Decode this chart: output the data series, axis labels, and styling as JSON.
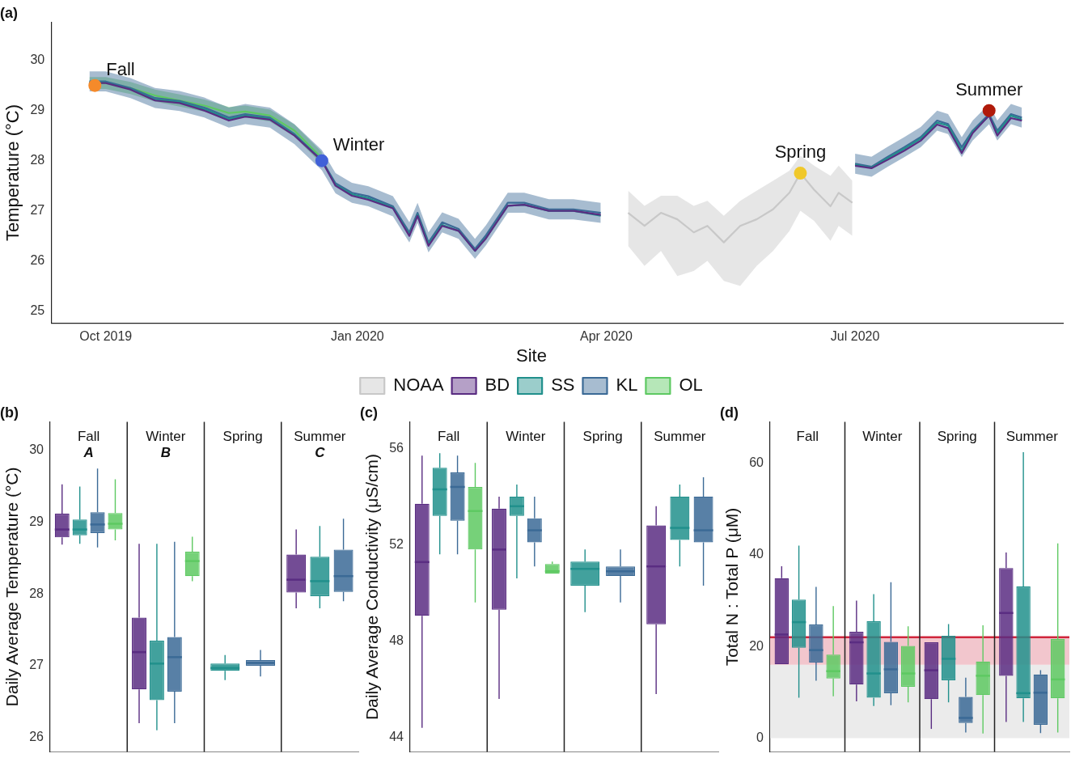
{
  "chart_data": [
    {
      "type": "line",
      "title": "(a)",
      "ylabel": "Temperature (°C)",
      "legend_title": "Site",
      "legend": "bottom",
      "grid": false,
      "xlim": [
        "2019-09-11",
        "2020-09-15"
      ],
      "ylim": [
        24.76,
        30.76
      ],
      "yticks": [
        25,
        26,
        27,
        28,
        29,
        30
      ],
      "xticks": [
        {
          "value": "2019-10-01",
          "label": "Oct 2019"
        },
        {
          "value": "2020-01-01",
          "label": "Jan 2020"
        },
        {
          "value": "2020-04-01",
          "label": "Apr 2020"
        },
        {
          "value": "2020-07-01",
          "label": "Jul 2020"
        }
      ],
      "series": [
        {
          "name": "NOAA",
          "color": "#c8c8c8",
          "x": [
            "2020-04-09",
            "2020-04-15",
            "2020-04-21",
            "2020-04-27",
            "2020-05-03",
            "2020-05-08",
            "2020-05-14",
            "2020-05-20",
            "2020-05-26",
            "2020-06-01",
            "2020-06-07",
            "2020-06-11",
            "2020-06-16",
            "2020-06-22",
            "2020-06-25",
            "2020-06-30"
          ],
          "values": [
            26.96,
            26.7,
            26.96,
            26.83,
            26.57,
            26.7,
            26.37,
            26.7,
            26.83,
            27.03,
            27.36,
            27.75,
            27.42,
            27.09,
            27.36,
            27.16
          ],
          "lower": [
            26.3,
            25.9,
            26.2,
            25.7,
            25.8,
            26.0,
            25.6,
            25.5,
            25.9,
            26.2,
            26.6,
            27.0,
            26.8,
            26.4,
            26.7,
            26.5
          ],
          "upper": [
            27.4,
            27.1,
            27.3,
            27.3,
            27.1,
            27.2,
            26.9,
            27.2,
            27.4,
            27.6,
            27.8,
            28.1,
            27.9,
            27.7,
            27.9,
            27.6
          ]
        },
        {
          "name": "BD",
          "color": "#5a2d82",
          "x": [
            "2019-09-25",
            "2019-10-01",
            "2019-10-10",
            "2019-10-19",
            "2019-10-28",
            "2019-11-06",
            "2019-11-15",
            "2019-11-21",
            "2019-11-30",
            "2019-12-09",
            "2019-12-19",
            "2019-12-24",
            "2019-12-30",
            "2020-01-05",
            "2020-01-14",
            "2020-01-20",
            "2020-01-23",
            "2020-01-27",
            "2020-02-01",
            "2020-02-07",
            "2020-02-13",
            "2020-02-17",
            "2020-02-25",
            "2020-03-02",
            "2020-03-11",
            "2020-03-20",
            "2020-03-30",
            "2020-05-15",
            "2020-07-01",
            "2020-07-07",
            "2020-07-13",
            "2020-07-19",
            "2020-07-25",
            "2020-07-31",
            "2020-08-04",
            "2020-08-09",
            "2020-08-13",
            "2020-08-19",
            "2020-08-22",
            "2020-08-27",
            "2020-08-31"
          ],
          "values": [
            29.55,
            29.55,
            29.42,
            29.2,
            29.15,
            29.0,
            28.8,
            28.88,
            28.82,
            28.5,
            28.0,
            27.5,
            27.3,
            27.22,
            27.05,
            26.5,
            26.9,
            26.3,
            26.7,
            26.6,
            26.2,
            26.45,
            27.1,
            27.12,
            27.0,
            27.0,
            26.92,
            null,
            27.9,
            27.85,
            28.02,
            28.2,
            28.4,
            28.72,
            28.65,
            28.15,
            28.55,
            28.9,
            28.5,
            28.85,
            28.8
          ]
        },
        {
          "name": "SS",
          "color": "#21908c",
          "x": [
            "2019-09-25",
            "2019-10-01",
            "2019-10-10",
            "2019-10-19",
            "2019-10-28",
            "2019-11-06",
            "2019-11-15",
            "2019-11-21",
            "2019-11-30",
            "2019-12-09",
            "2019-12-19",
            "2019-12-24",
            "2019-12-30",
            "2020-01-05",
            "2020-01-14",
            "2020-01-20",
            "2020-01-23",
            "2020-01-27",
            "2020-02-01",
            "2020-02-07",
            "2020-02-13",
            "2020-02-17",
            "2020-02-25",
            "2020-03-02",
            "2020-03-11",
            "2020-03-20",
            "2020-03-30",
            "2020-05-15",
            "2020-07-01",
            "2020-07-07",
            "2020-07-13",
            "2020-07-19",
            "2020-07-25",
            "2020-07-31",
            "2020-08-04",
            "2020-08-09",
            "2020-08-13",
            "2020-08-19",
            "2020-08-22",
            "2020-08-27",
            "2020-08-31"
          ],
          "values": [
            29.56,
            29.56,
            29.43,
            29.22,
            29.17,
            29.03,
            28.83,
            28.9,
            28.84,
            28.52,
            28.0,
            27.52,
            27.33,
            27.25,
            27.06,
            26.52,
            26.92,
            26.33,
            26.72,
            26.6,
            26.2,
            26.46,
            27.1,
            27.12,
            27.0,
            27.0,
            26.9,
            null,
            27.92,
            27.86,
            28.05,
            28.24,
            28.44,
            28.76,
            28.7,
            28.2,
            28.58,
            28.9,
            28.55,
            28.9,
            28.82
          ]
        },
        {
          "name": "KL",
          "color": "#3b6a96",
          "x": [
            "2019-09-25",
            "2019-10-01",
            "2019-10-10",
            "2019-10-19",
            "2019-10-28",
            "2019-11-06",
            "2019-11-15",
            "2019-11-21",
            "2019-11-30",
            "2019-12-09",
            "2019-12-19",
            "2019-12-24",
            "2019-12-30",
            "2020-01-05",
            "2020-01-14",
            "2020-01-20",
            "2020-01-23",
            "2020-01-27",
            "2020-02-01",
            "2020-02-07",
            "2020-02-13",
            "2020-02-17",
            "2020-02-25",
            "2020-03-02",
            "2020-03-11",
            "2020-03-20",
            "2020-03-30",
            "2020-05-15",
            "2020-07-01",
            "2020-07-07",
            "2020-07-13",
            "2020-07-19",
            "2020-07-25",
            "2020-07-31",
            "2020-08-04",
            "2020-08-09",
            "2020-08-13",
            "2020-08-19",
            "2020-08-22",
            "2020-08-27",
            "2020-08-31"
          ],
          "values": [
            29.58,
            29.58,
            29.45,
            29.25,
            29.19,
            29.06,
            28.86,
            28.93,
            28.86,
            28.53,
            28.01,
            27.55,
            27.36,
            27.29,
            27.09,
            26.57,
            26.96,
            26.37,
            26.77,
            26.64,
            26.24,
            26.51,
            27.16,
            27.16,
            27.03,
            27.03,
            26.96,
            null,
            27.94,
            27.88,
            28.08,
            28.27,
            28.47,
            28.8,
            28.73,
            28.27,
            28.6,
            28.93,
            28.6,
            28.93,
            28.86
          ],
          "lower": [
            29.38,
            29.38,
            29.25,
            29.05,
            28.99,
            28.86,
            28.66,
            28.73,
            28.66,
            28.33,
            27.81,
            27.35,
            27.16,
            27.09,
            26.89,
            26.37,
            26.76,
            26.17,
            26.57,
            26.44,
            26.04,
            26.31,
            26.96,
            26.96,
            26.83,
            26.83,
            26.76,
            null,
            27.74,
            27.68,
            27.88,
            28.07,
            28.27,
            28.6,
            28.53,
            28.07,
            28.4,
            28.73,
            28.4,
            28.73,
            28.66
          ],
          "upper": [
            29.78,
            29.78,
            29.65,
            29.45,
            29.39,
            29.26,
            29.06,
            29.13,
            29.06,
            28.73,
            28.21,
            27.75,
            27.56,
            27.49,
            27.29,
            26.77,
            27.16,
            26.57,
            26.97,
            26.84,
            26.44,
            26.71,
            27.36,
            27.36,
            27.23,
            27.23,
            27.16,
            null,
            28.14,
            28.08,
            28.28,
            28.47,
            28.67,
            29.0,
            28.93,
            28.47,
            28.8,
            29.13,
            28.8,
            29.13,
            29.06
          ]
        },
        {
          "name": "OL",
          "color": "#5ec962",
          "x": [
            "2019-09-25",
            "2019-10-01",
            "2019-10-10",
            "2019-10-19",
            "2019-10-28",
            "2019-11-06",
            "2019-11-15",
            "2019-11-21",
            "2019-11-30",
            "2019-12-09",
            "2019-12-19"
          ],
          "values": [
            29.55,
            29.55,
            29.45,
            29.3,
            29.2,
            29.1,
            28.95,
            28.98,
            28.9,
            28.6,
            28.05
          ],
          "lower": [
            29.43,
            29.43,
            29.33,
            29.18,
            29.08,
            28.98,
            28.83,
            28.86,
            28.78,
            28.48,
            27.93
          ],
          "upper": [
            29.67,
            29.67,
            29.57,
            29.42,
            29.32,
            29.22,
            29.07,
            29.1,
            29.02,
            28.72,
            28.17
          ]
        },
        {
          "type": "scatter",
          "x": [
            "2019-09-27",
            "2019-12-19",
            "2020-06-11",
            "2020-08-19"
          ],
          "values": [
            29.5,
            28.0,
            27.75,
            29.0
          ],
          "colors": [
            "#f58a2a",
            "#4060d8",
            "#f0c82a",
            "#b01a0a"
          ]
        }
      ],
      "annotations": [
        {
          "text": "Fall",
          "x": "2019-09-27",
          "y": 29.5
        },
        {
          "text": "Winter",
          "x": "2019-12-19",
          "y": 28.0
        },
        {
          "text": "Spring",
          "x": "2020-06-11",
          "y": 27.75
        },
        {
          "text": "Summer",
          "x": "2020-08-19",
          "y": 29.0
        }
      ]
    },
    {
      "type": "box",
      "title": "(b)",
      "ylabel": "Daily Average Temperature (°C)",
      "grid": false,
      "tick_labels": "y",
      "categories": [
        "Fall",
        "Winter",
        "Spring",
        "Summer"
      ],
      "ylim": [
        25.8,
        30.4
      ],
      "yticks": [
        26,
        27,
        28,
        29,
        30
      ],
      "series": [
        {
          "color": "#5a2d82",
          "boxes": [
            {
              "low": 28.69,
              "q1": 28.79,
              "median": 28.9,
              "q3": 29.12,
              "high": 29.53
            },
            {
              "low": 26.2,
              "q1": 26.67,
              "median": 27.19,
              "q3": 27.67,
              "high": 28.7
            },
            null,
            {
              "low": 27.8,
              "q1": 28.02,
              "median": 28.2,
              "q3": 28.55,
              "high": 28.9
            }
          ]
        },
        {
          "color": "#21908c",
          "boxes": [
            {
              "low": 28.7,
              "q1": 28.82,
              "median": 28.9,
              "q3": 29.04,
              "high": 29.5
            },
            {
              "low": 26.1,
              "q1": 26.52,
              "median": 27.03,
              "q3": 27.35,
              "high": 28.7
            },
            {
              "low": 26.8,
              "q1": 26.93,
              "median": 26.97,
              "q3": 27.03,
              "high": 27.15
            },
            {
              "low": 27.8,
              "q1": 27.97,
              "median": 28.18,
              "q3": 28.52,
              "high": 28.95
            }
          ]
        },
        {
          "color": "#3b6a96",
          "boxes": [
            {
              "low": 28.65,
              "q1": 28.85,
              "median": 28.97,
              "q3": 29.14,
              "high": 29.75
            },
            {
              "low": 26.2,
              "q1": 26.64,
              "median": 27.12,
              "q3": 27.4,
              "high": 28.73
            },
            {
              "low": 26.85,
              "q1": 27.0,
              "median": 27.04,
              "q3": 27.08,
              "high": 27.22
            },
            {
              "low": 27.9,
              "q1": 28.03,
              "median": 28.25,
              "q3": 28.62,
              "high": 29.05
            }
          ]
        },
        {
          "color": "#5ec962",
          "boxes": [
            {
              "low": 28.75,
              "q1": 28.9,
              "median": 28.98,
              "q3": 29.13,
              "high": 29.6
            },
            {
              "low": 28.18,
              "q1": 28.25,
              "median": 28.46,
              "q3": 28.59,
              "high": 28.8
            },
            null,
            null
          ]
        }
      ],
      "annotations": [
        "A",
        "B",
        "C"
      ]
    },
    {
      "type": "box",
      "title": "(c)",
      "ylabel": "Daily Average Conductivity (μS/cm)",
      "grid": false,
      "tick_labels": "y",
      "categories": [
        "Fall",
        "Winter",
        "Spring",
        "Summer"
      ],
      "ylim": [
        43.4,
        57.1
      ],
      "yticks": [
        44,
        48,
        52,
        56
      ],
      "series": [
        {
          "color": "#5a2d82",
          "boxes": [
            {
              "low": 44.4,
              "q1": 49.05,
              "median": 51.28,
              "q3": 53.7,
              "high": 55.7
            },
            {
              "low": 45.6,
              "q1": 49.3,
              "median": 51.8,
              "q3": 53.5,
              "high": 54.0
            },
            null,
            {
              "low": 45.8,
              "q1": 48.7,
              "median": 51.1,
              "q3": 52.8,
              "high": 53.6
            }
          ]
        },
        {
          "color": "#21908c",
          "boxes": [
            {
              "low": 51.6,
              "q1": 53.2,
              "median": 54.3,
              "q3": 55.2,
              "high": 55.8
            },
            {
              "low": 50.6,
              "q1": 53.2,
              "median": 53.6,
              "q3": 54.0,
              "high": 54.5
            },
            {
              "low": 49.2,
              "q1": 50.3,
              "median": 51.0,
              "q3": 51.3,
              "high": 51.8
            },
            {
              "low": 51.1,
              "q1": 52.2,
              "median": 52.7,
              "q3": 54.0,
              "high": 54.5
            }
          ]
        },
        {
          "color": "#3b6a96",
          "boxes": [
            {
              "low": 51.6,
              "q1": 53.0,
              "median": 54.4,
              "q3": 55.0,
              "high": 55.7
            },
            {
              "low": 51.1,
              "q1": 52.1,
              "median": 52.6,
              "q3": 53.1,
              "high": 54.0
            },
            {
              "low": 49.6,
              "q1": 50.7,
              "median": 50.9,
              "q3": 51.1,
              "high": 51.8
            },
            {
              "low": 50.3,
              "q1": 52.1,
              "median": 52.6,
              "q3": 54.0,
              "high": 54.8
            }
          ]
        },
        {
          "color": "#5ec962",
          "boxes": [
            {
              "low": 49.6,
              "q1": 51.8,
              "median": 53.4,
              "q3": 54.4,
              "high": 55.4
            },
            {
              "low": 50.8,
              "q1": 50.8,
              "median": 50.9,
              "q3": 51.2,
              "high": 51.3
            },
            null,
            null
          ]
        }
      ]
    },
    {
      "type": "box",
      "title": "(d)",
      "ylabel": "Total N : Total P (μM)",
      "grid": false,
      "tick_labels": "y",
      "categories": [
        "Fall",
        "Winter",
        "Spring",
        "Summer"
      ],
      "ylim": [
        -3,
        69
      ],
      "yticks": [
        0,
        20,
        40,
        60
      ],
      "bands": [
        {
          "axis": "y",
          "from": 0,
          "to": 16,
          "color": "#ebebeb"
        },
        {
          "axis": "y",
          "from": 16,
          "to": 22,
          "color": "#f2c6cd"
        }
      ],
      "ref_lines": [
        {
          "axis": "y",
          "value": 22,
          "color": "#d0263c"
        }
      ],
      "series": [
        {
          "color": "#5a2d82",
          "boxes": [
            {
              "low": 16.1,
              "q1": 16.1,
              "median": 22.6,
              "q3": 34.9,
              "high": 37.5
            },
            {
              "low": 8,
              "q1": 11.7,
              "median": 20.9,
              "q3": 23.2,
              "high": 30
            },
            {
              "low": 2,
              "q1": 8.5,
              "median": 14.8,
              "q3": 20.9,
              "high": 20.9
            },
            {
              "low": 3.5,
              "q1": 13.6,
              "median": 27.3,
              "q3": 37.1,
              "high": 40.5
            }
          ]
        },
        {
          "color": "#21908c",
          "boxes": [
            {
              "low": 8.8,
              "q1": 19.7,
              "median": 25.3,
              "q3": 30.2,
              "high": 42
            },
            {
              "low": 7,
              "q1": 8.8,
              "median": 14.1,
              "q3": 25.5,
              "high": 31.4
            },
            {
              "low": 7.8,
              "q1": 12.6,
              "median": 17.3,
              "q3": 22.3,
              "high": 24.9
            },
            {
              "low": 3.5,
              "q1": 8.7,
              "median": 9.8,
              "q3": 33.1,
              "high": 62.4
            }
          ]
        },
        {
          "color": "#3b6a96",
          "boxes": [
            {
              "low": 12.5,
              "q1": 16.5,
              "median": 19.2,
              "q3": 24.8,
              "high": 33
            },
            {
              "low": 7.2,
              "q1": 9.8,
              "median": 15,
              "q3": 21,
              "high": 34
            },
            {
              "low": 1.2,
              "q1": 3.3,
              "median": 4.4,
              "q3": 9,
              "high": 13.2
            },
            {
              "low": 1.1,
              "q1": 2.9,
              "median": 9.9,
              "q3": 13.9,
              "high": 14.8
            }
          ]
        },
        {
          "color": "#5ec962",
          "boxes": [
            {
              "low": 9.1,
              "q1": 13,
              "median": 14.6,
              "q3": 18.2,
              "high": 28.8
            },
            {
              "low": 7.8,
              "q1": 11.2,
              "median": 14.1,
              "q3": 20.1,
              "high": 24.4
            },
            {
              "low": 1,
              "q1": 9.4,
              "median": 13.6,
              "q3": 16.7,
              "high": 24.6
            },
            {
              "low": 1.2,
              "q1": 8.7,
              "median": 12.8,
              "q3": 21.6,
              "high": 42.5
            }
          ]
        }
      ]
    }
  ]
}
